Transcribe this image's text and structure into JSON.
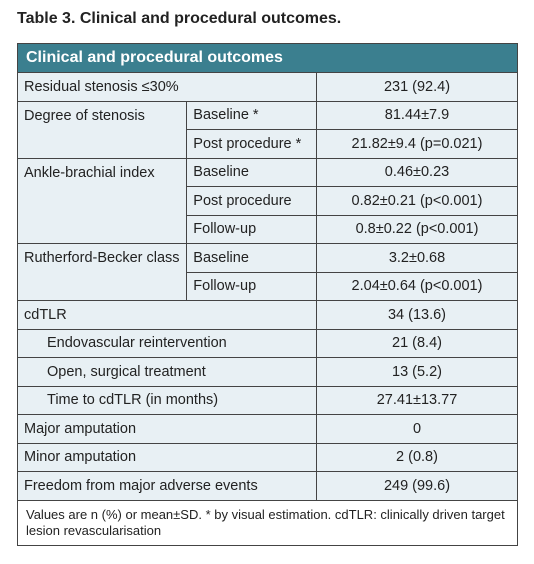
{
  "title": "Table 3. Clinical and procedural outcomes.",
  "table": {
    "header": "Clinical and procedural outcomes",
    "rows": [
      {
        "label": "Residual stenosis ≤30%",
        "value": "231 (92.4)"
      },
      {
        "label": "Degree of stenosis",
        "sub": [
          {
            "label": "Baseline *",
            "value": "81.44±7.9"
          },
          {
            "label": "Post procedure *",
            "value": "21.82±9.4 (p=0.021)"
          }
        ]
      },
      {
        "label": "Ankle-brachial index",
        "sub": [
          {
            "label": "Baseline",
            "value": "0.46±0.23"
          },
          {
            "label": "Post procedure",
            "value": "0.82±0.21 (p<0.001)"
          },
          {
            "label": "Follow-up",
            "value": "0.8±0.22 (p<0.001)"
          }
        ]
      },
      {
        "label": "Rutherford-Becker class",
        "sub": [
          {
            "label": "Baseline",
            "value": "3.2±0.68"
          },
          {
            "label": "Follow-up",
            "value": "2.04±0.64 (p<0.001)"
          }
        ]
      },
      {
        "label": "cdTLR",
        "value": "34 (13.6)",
        "items": [
          {
            "label": "Endovascular reintervention",
            "value": "21 (8.4)"
          },
          {
            "label": "Open, surgical treatment",
            "value": "13 (5.2)"
          },
          {
            "label": "Time to cdTLR (in months)",
            "value": "27.41±13.77"
          }
        ]
      },
      {
        "label": "Major amputation",
        "value": "0"
      },
      {
        "label": "Minor amputation",
        "value": "2 (0.8)"
      },
      {
        "label": "Freedom from major adverse events",
        "value": "249 (99.6)"
      }
    ],
    "footnote": "Values are n (%) or mean±SD. * by visual estimation. cdTLR: clinically driven target lesion revascularisation"
  }
}
